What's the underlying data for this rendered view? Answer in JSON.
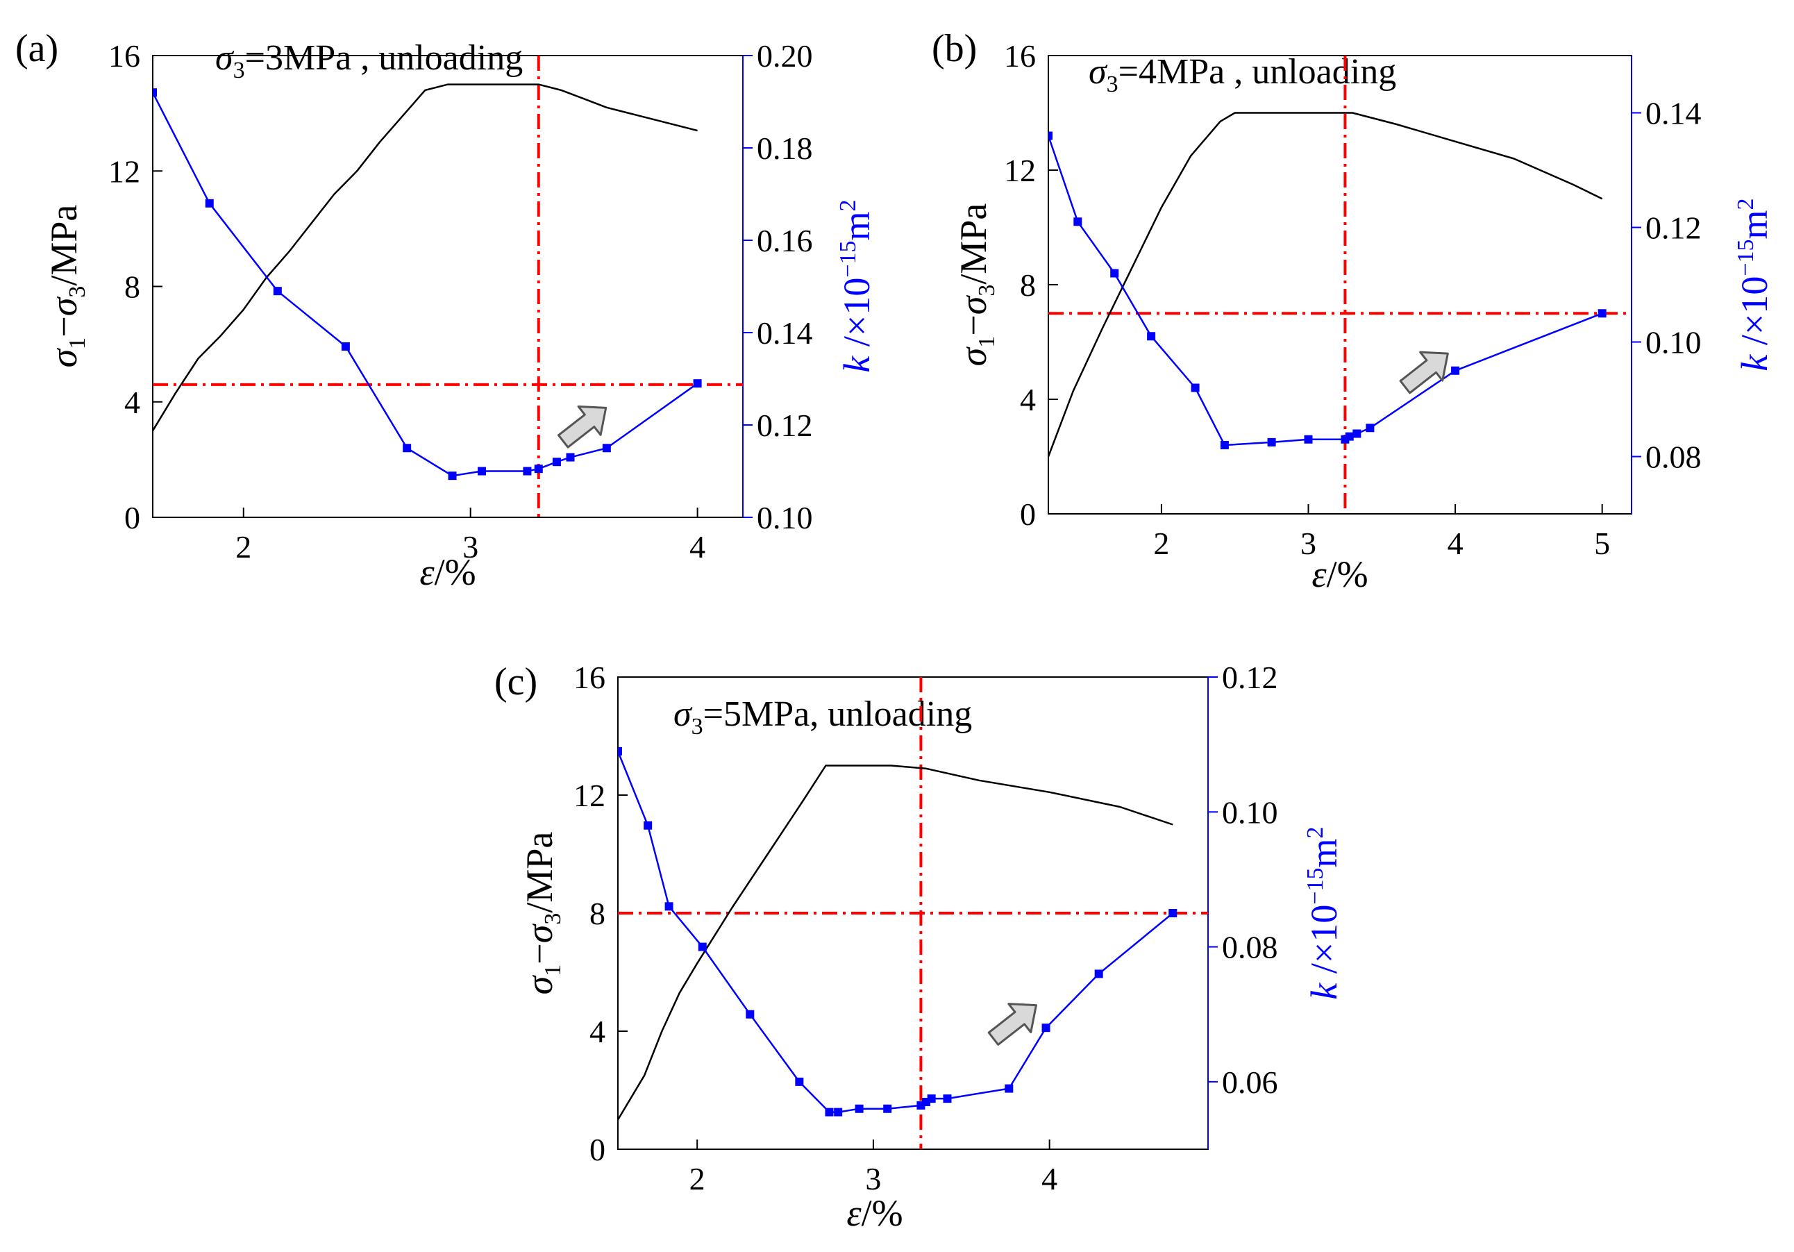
{
  "figure": {
    "background": "#ffffff"
  },
  "colors": {
    "stress": "#000000",
    "perm": "#0000ff",
    "guide": "#ff0000",
    "arrow_fill": "#d9d9d9",
    "arrow_stroke": "#555555"
  },
  "chart_data": [
    {
      "panel": "(a)",
      "type": "line",
      "title_sym": "σ",
      "title_sub": "3",
      "title_rest": "=3MPa , unloading",
      "xlabel": "ε/%",
      "xlim": [
        1.6,
        4.2
      ],
      "xticks": [
        2,
        3,
        4
      ],
      "xtick_labels": [
        "2",
        "3",
        "4"
      ],
      "ylabel_left": "σ1−σ3/MPa",
      "ylim_left": [
        0,
        16
      ],
      "yticks_left": [
        0,
        4,
        8,
        12,
        16
      ],
      "ytick_labels_left": [
        "0",
        "4",
        "8",
        "12",
        "16"
      ],
      "ylabel_right": "k /×10−15m2",
      "ylim_right": [
        0.1,
        0.2
      ],
      "yticks_right": [
        0.1,
        0.12,
        0.14,
        0.16,
        0.18,
        0.2
      ],
      "ytick_labels_right": [
        "0.10",
        "0.12",
        "0.14",
        "0.16",
        "0.18",
        "0.20"
      ],
      "series": [
        {
          "name": "σ1−σ3",
          "axis": "left",
          "x": [
            1.6,
            1.7,
            1.8,
            1.9,
            2.0,
            2.1,
            2.2,
            2.3,
            2.4,
            2.5,
            2.6,
            2.7,
            2.8,
            2.9,
            2.95,
            3.1,
            3.3,
            3.4,
            3.5,
            3.6,
            3.8,
            4.0
          ],
          "y": [
            3.0,
            4.3,
            5.5,
            6.3,
            7.2,
            8.3,
            9.2,
            10.2,
            11.2,
            12.0,
            13.0,
            13.9,
            14.8,
            15.0,
            15.0,
            15.0,
            15.0,
            14.8,
            14.5,
            14.2,
            13.8,
            13.4
          ]
        },
        {
          "name": "k",
          "axis": "right",
          "markers": true,
          "x": [
            1.6,
            1.85,
            2.15,
            2.45,
            2.72,
            2.92,
            3.05,
            3.25,
            3.3,
            3.38,
            3.44,
            3.6,
            4.0
          ],
          "y": [
            0.192,
            0.168,
            0.149,
            0.137,
            0.115,
            0.109,
            0.11,
            0.11,
            0.1105,
            0.112,
            0.113,
            0.115,
            0.129
          ]
        }
      ],
      "guides": {
        "vline_x": 3.3,
        "hline_left_y": 4.6
      },
      "arrow": {
        "x": 3.5,
        "y": 3.2,
        "dir": "up-right"
      }
    },
    {
      "panel": "(b)",
      "type": "line",
      "title_sym": "σ",
      "title_sub": "3",
      "title_rest": "=4MPa , unloading",
      "xlabel": "ε/%",
      "xlim": [
        1.23,
        5.2
      ],
      "xticks": [
        2,
        3,
        4,
        5
      ],
      "xtick_labels": [
        "2",
        "3",
        "4",
        "5"
      ],
      "ylabel_left": "σ1−σ3/MPa",
      "ylim_left": [
        0,
        16
      ],
      "yticks_left": [
        0,
        4,
        8,
        12,
        16
      ],
      "ytick_labels_left": [
        "0",
        "4",
        "8",
        "12",
        "16"
      ],
      "ylabel_right": "k /×10−15m2",
      "ylim_right": [
        0.07,
        0.15
      ],
      "yticks_right": [
        0.08,
        0.1,
        0.12,
        0.14
      ],
      "ytick_labels_right": [
        "0.08",
        "0.10",
        "0.12",
        "0.14"
      ],
      "series": [
        {
          "name": "σ1−σ3",
          "axis": "left",
          "x": [
            1.23,
            1.4,
            1.6,
            1.8,
            2.0,
            2.2,
            2.4,
            2.5,
            2.6,
            3.0,
            3.3,
            3.6,
            4.0,
            4.4,
            4.8,
            5.0
          ],
          "y": [
            2.0,
            4.3,
            6.5,
            8.6,
            10.7,
            12.5,
            13.7,
            14.0,
            14.0,
            14.0,
            14.0,
            13.6,
            13.0,
            12.4,
            11.5,
            11.0
          ]
        },
        {
          "name": "k",
          "axis": "right",
          "markers": true,
          "x": [
            1.23,
            1.43,
            1.68,
            1.93,
            2.23,
            2.43,
            2.75,
            3.0,
            3.25,
            3.28,
            3.33,
            3.42,
            4.0,
            5.0
          ],
          "y": [
            0.136,
            0.121,
            0.112,
            0.101,
            0.092,
            0.082,
            0.0825,
            0.083,
            0.083,
            0.0835,
            0.084,
            0.085,
            0.095,
            0.105
          ]
        }
      ],
      "guides": {
        "vline_x": 3.25,
        "hline_left_y": 7.0
      },
      "arrow": {
        "x": 3.8,
        "y": 5.0,
        "dir": "up-right"
      }
    },
    {
      "panel": "(c)",
      "type": "line",
      "title_sym": "σ",
      "title_sub": "3",
      "title_rest": "=5MPa, unloading",
      "xlabel": "ε/%",
      "xlim": [
        1.55,
        4.9
      ],
      "xticks": [
        2,
        3,
        4
      ],
      "xtick_labels": [
        "2",
        "3",
        "4"
      ],
      "ylabel_left": "σ1−σ3/MPa",
      "ylim_left": [
        0,
        16
      ],
      "yticks_left": [
        0,
        4,
        8,
        12,
        16
      ],
      "ytick_labels_left": [
        "0",
        "4",
        "8",
        "12",
        "16"
      ],
      "ylabel_right": "k /×10−15m2",
      "ylim_right": [
        0.05,
        0.12
      ],
      "yticks_right": [
        0.06,
        0.08,
        0.1,
        0.12
      ],
      "ytick_labels_right": [
        "0.06",
        "0.08",
        "0.10",
        "0.12"
      ],
      "series": [
        {
          "name": "σ1−σ3",
          "axis": "left",
          "x": [
            1.55,
            1.7,
            1.8,
            1.9,
            2.0,
            2.2,
            2.4,
            2.6,
            2.73,
            2.9,
            3.1,
            3.3,
            3.6,
            4.0,
            4.4,
            4.7
          ],
          "y": [
            1.0,
            2.5,
            4.0,
            5.3,
            6.3,
            8.2,
            10.0,
            11.8,
            13.0,
            13.0,
            13.0,
            12.9,
            12.5,
            12.1,
            11.6,
            11.0
          ]
        },
        {
          "name": "k",
          "axis": "right",
          "markers": true,
          "x": [
            1.55,
            1.72,
            1.84,
            2.03,
            2.3,
            2.58,
            2.75,
            2.8,
            2.92,
            3.08,
            3.27,
            3.3,
            3.33,
            3.42,
            3.77,
            3.98,
            4.28,
            4.7
          ],
          "y": [
            0.109,
            0.098,
            0.086,
            0.08,
            0.07,
            0.06,
            0.0555,
            0.0555,
            0.056,
            0.056,
            0.0565,
            0.057,
            0.0575,
            0.0575,
            0.059,
            0.068,
            0.076,
            0.085
          ]
        }
      ],
      "guides": {
        "vline_x": 3.27,
        "hline_left_y": 8.0
      },
      "arrow": {
        "x": 3.8,
        "y": 4.3,
        "dir": "up-right"
      }
    }
  ]
}
